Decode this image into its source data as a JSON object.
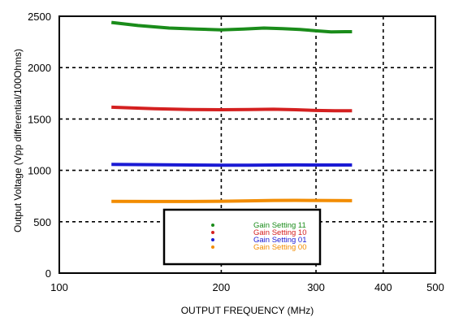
{
  "chart_data": {
    "type": "line",
    "xlabel": "OUTPUT FREQUENCY (MHz)",
    "ylabel": "Output Voltage (Vpp differential/100Ohms)",
    "xscale": "log",
    "xlim": [
      100,
      500
    ],
    "ylim": [
      0,
      2500
    ],
    "x_ticks": [
      100,
      200,
      300,
      400,
      500
    ],
    "y_ticks": [
      0,
      500,
      1000,
      1500,
      2000,
      2500
    ],
    "grid": "dashed",
    "legend_position": "bottom-center",
    "series": [
      {
        "name": "Gain Setting 11",
        "color": "#1a8c1a",
        "x": [
          125,
          140,
          160,
          180,
          200,
          220,
          240,
          260,
          280,
          300,
          320,
          340,
          350
        ],
        "y": [
          2440,
          2410,
          2385,
          2375,
          2368,
          2375,
          2385,
          2380,
          2372,
          2358,
          2348,
          2350,
          2350
        ]
      },
      {
        "name": "Gain Setting 10",
        "color": "#d42020",
        "x": [
          125,
          150,
          175,
          200,
          225,
          250,
          275,
          300,
          325,
          350
        ],
        "y": [
          1615,
          1600,
          1592,
          1590,
          1592,
          1595,
          1590,
          1583,
          1580,
          1580
        ]
      },
      {
        "name": "Gain Setting 01",
        "color": "#1a1ad4",
        "x": [
          125,
          150,
          175,
          200,
          225,
          250,
          275,
          300,
          325,
          350
        ],
        "y": [
          1058,
          1055,
          1052,
          1050,
          1050,
          1052,
          1053,
          1052,
          1052,
          1052
        ]
      },
      {
        "name": "Gain Setting 00",
        "color": "#f28c00",
        "x": [
          125,
          150,
          175,
          200,
          225,
          250,
          275,
          300,
          325,
          350
        ],
        "y": [
          698,
          697,
          697,
          699,
          703,
          707,
          708,
          707,
          706,
          705
        ]
      }
    ]
  }
}
